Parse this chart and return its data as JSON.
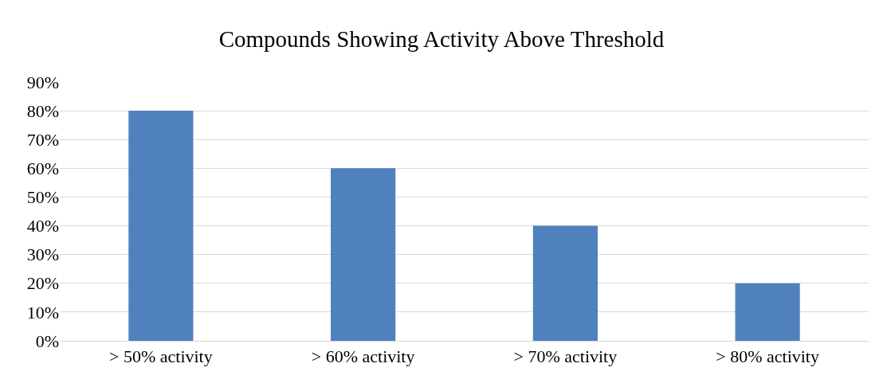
{
  "chart_data": {
    "type": "bar",
    "title": "Compounds Showing Activity Above Threshold",
    "categories": [
      "> 50% activity",
      "> 60% activity",
      "> 70% activity",
      "> 80% activity"
    ],
    "values": [
      80,
      60,
      40,
      20
    ],
    "color": "#4f81bd",
    "ylim": [
      0,
      90
    ],
    "yticks": [
      {
        "value": 0,
        "label": "0%"
      },
      {
        "value": 10,
        "label": "10%"
      },
      {
        "value": 20,
        "label": "20%"
      },
      {
        "value": 30,
        "label": "30%"
      },
      {
        "value": 40,
        "label": "40%"
      },
      {
        "value": 50,
        "label": "50%"
      },
      {
        "value": 60,
        "label": "60%"
      },
      {
        "value": 70,
        "label": "70%"
      },
      {
        "value": 80,
        "label": "80%"
      },
      {
        "value": 90,
        "label": "90%"
      }
    ],
    "grid": "y"
  }
}
